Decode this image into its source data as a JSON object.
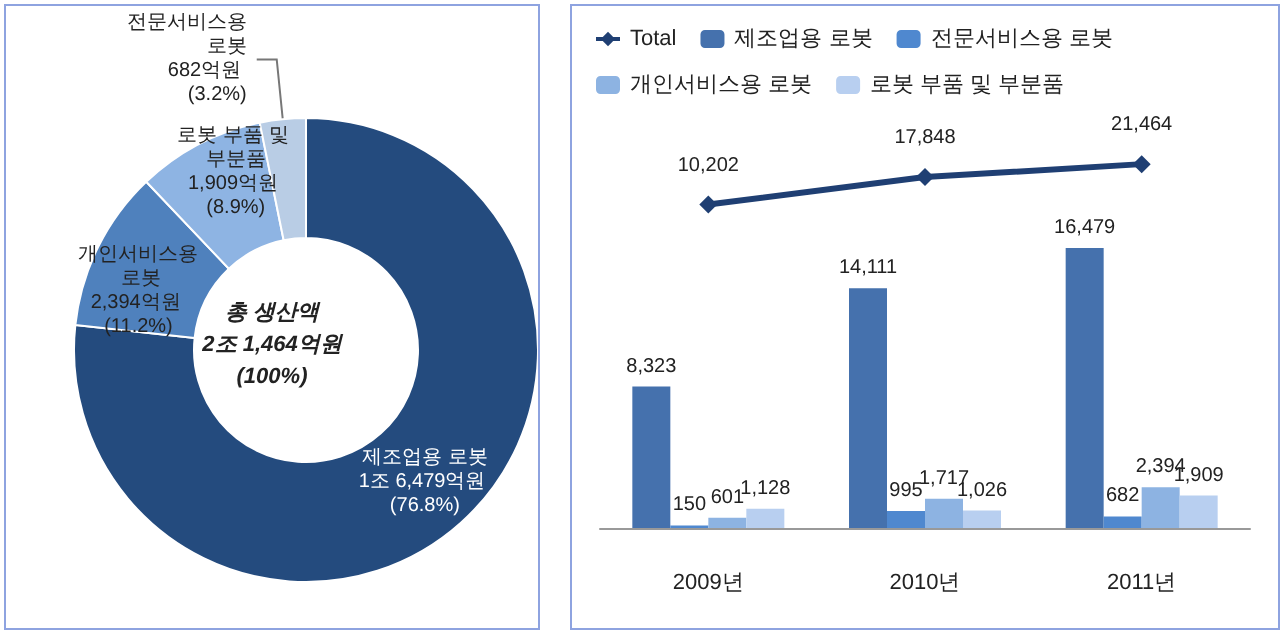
{
  "chart_data": [
    {
      "type": "donut",
      "categories": [
        "제조업용 로봇",
        "개인서비스용 로봇",
        "로봇 부품 및 부분품",
        "전문서비스용 로봇"
      ],
      "values": [
        76.8,
        11.2,
        8.9,
        3.2
      ],
      "colors": [
        "#244b7e",
        "#4f81bd",
        "#8eb4e3",
        "#b9cde5"
      ],
      "value_labels": [
        "1조 6,479억원 (76.8%)",
        "2,394억원 (11.2%)",
        "1,909억원 (8.9%)",
        "682억원 (3.2%)"
      ],
      "annotations": [
        "총 생산액",
        "2조 1,464억원",
        "(100%)"
      ]
    },
    {
      "type": "bar",
      "categories": [
        "2009년",
        "2010년",
        "2011년"
      ],
      "series": [
        {
          "name": "Total",
          "type": "line",
          "axis": "y2",
          "color": "#1f3f73",
          "values": [
            10202,
            17848,
            21464
          ],
          "value_labels": [
            "10,202",
            "17,848",
            "21,464"
          ]
        },
        {
          "name": "제조업용 로봇",
          "color": "#4571ad",
          "values": [
            8323,
            14111,
            16479
          ],
          "value_labels": [
            "8,323",
            "14,111",
            "16,479"
          ]
        },
        {
          "name": "전문서비스용 로봇",
          "color": "#4f88cf",
          "values": [
            150,
            995,
            682
          ],
          "value_labels": [
            "150",
            "995",
            "682"
          ]
        },
        {
          "name": "개인서비스용 로봇",
          "color": "#8db3e2",
          "values": [
            601,
            1717,
            2394
          ],
          "value_labels": [
            "601",
            "1,717",
            "2,394"
          ]
        },
        {
          "name": "로봇 부품 및 부분품",
          "color": "#b8cff0",
          "values": [
            1128,
            1026,
            1909
          ],
          "value_labels": [
            "1,128",
            "1,026",
            "1,909"
          ]
        }
      ],
      "ylim": [
        0,
        30600
      ],
      "y2lim": [
        -80000,
        65000
      ],
      "legend": "top",
      "marker": "diamond"
    }
  ]
}
